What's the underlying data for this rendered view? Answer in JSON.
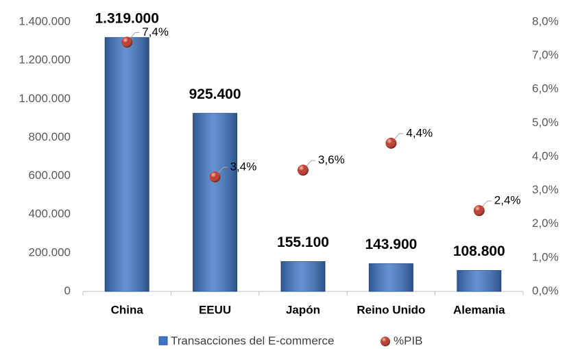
{
  "chart_data": {
    "type": "bar",
    "categories": [
      "China",
      "EEUU",
      "Japón",
      "Reino Unido",
      "Alemania"
    ],
    "series": [
      {
        "name": "Transacciones del E-commerce",
        "type": "bar",
        "color": "#3f76c4",
        "values": [
          1319000,
          925400,
          155100,
          143900,
          108800
        ],
        "value_labels": [
          "1.319.000",
          "925.400",
          "155.100",
          "143.900",
          "108.800"
        ]
      },
      {
        "name": "%PIB",
        "type": "scatter",
        "axis": "y2",
        "color": "#c0392b",
        "values": [
          7.4,
          3.4,
          3.6,
          4.4,
          2.4
        ],
        "value_labels": [
          "7,4%",
          "3,4%",
          "3,6%",
          "4,4%",
          "2,4%"
        ]
      }
    ],
    "ylim": [
      0,
      1400000
    ],
    "yticks": [
      0,
      {
        "value": 200000,
        "label": "200.000"
      },
      {
        "value": 400000,
        "label": "400.000"
      },
      {
        "value": 600000,
        "label": "600.000"
      },
      {
        "value": 800000,
        "label": "800.000"
      },
      {
        "value": 1000000,
        "label": "1.000.000"
      },
      {
        "value": 1200000,
        "label": "1.200.000"
      },
      {
        "value": 1400000,
        "label": "1.400.000"
      }
    ],
    "y2lim": [
      0,
      8
    ],
    "y2ticks": [
      {
        "value": 0,
        "label": "0,0%"
      },
      {
        "value": 1,
        "label": "1,0%"
      },
      {
        "value": 2,
        "label": "2,0%"
      },
      {
        "value": 3,
        "label": "3,0%"
      },
      {
        "value": 4,
        "label": "4,0%"
      },
      {
        "value": 5,
        "label": "5,0%"
      },
      {
        "value": 6,
        "label": "6,0%"
      },
      {
        "value": 7,
        "label": "7,0%"
      },
      {
        "value": 8,
        "label": "8,0%"
      }
    ],
    "grid": false,
    "legend": "bottom"
  }
}
